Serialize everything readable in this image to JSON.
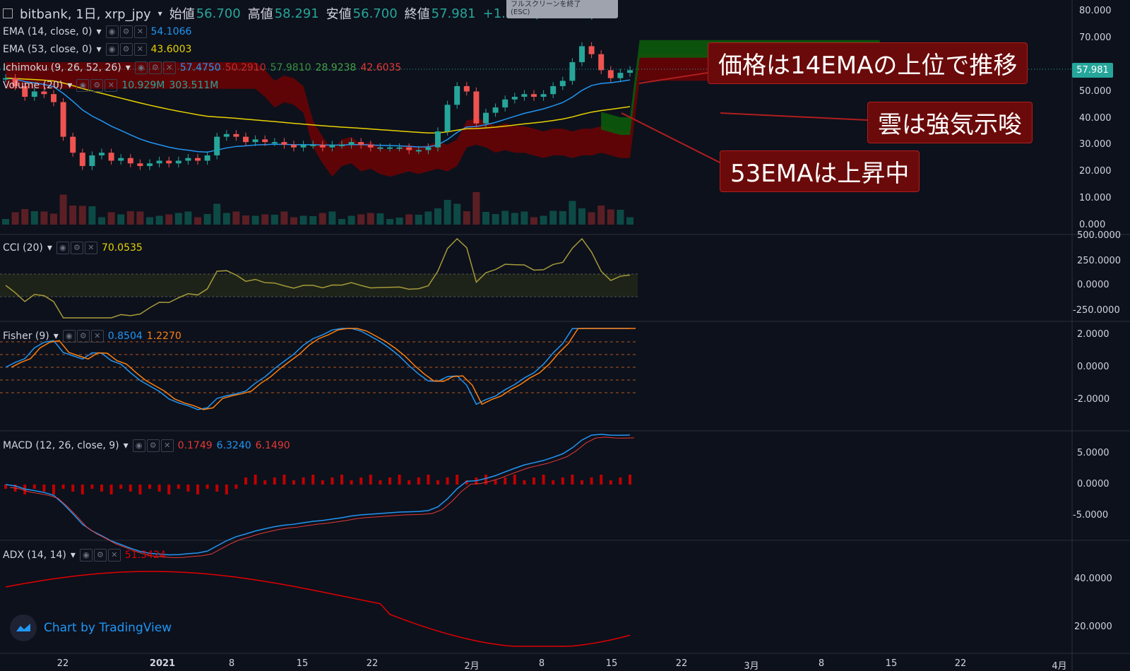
{
  "header": {
    "symbol": "bitbank, 1日, xrp_jpy",
    "open_label": "始値",
    "open": "56.700",
    "high_label": "高値",
    "high": "58.291",
    "low_label": "安値",
    "low": "56.700",
    "close_label": "終値",
    "close": "57.981",
    "change": "+1.281 (+2.26%)",
    "tooltip_line1": "フルスクリーンを終了",
    "tooltip_line2": "(ESC)"
  },
  "colors": {
    "up": "#26a69a",
    "down": "#ef5350",
    "ema14": "#2196f3",
    "ema53": "#e8d200",
    "cloud_green": "#0b5b0b",
    "cloud_red": "#7a0000",
    "cci": "#a59a3a",
    "fisher_a": "#2196f3",
    "fisher_b": "#ff7f0e",
    "macd": "#2196f3",
    "signal": "#e53935",
    "adx": "#e00000",
    "annotation_bg": "#6b0a0a"
  },
  "indicators": {
    "ema14": {
      "label": "EMA (14, close, 0)",
      "value": "54.1066"
    },
    "ema53": {
      "label": "EMA (53, close, 0)",
      "value": "43.6003"
    },
    "ichimoku": {
      "label": "Ichimoku (9, 26, 52, 26)",
      "v1": "57.4750",
      "v2": "50.2910",
      "v3": "57.9810",
      "v4": "28.9238",
      "v5": "42.6035"
    },
    "volume": {
      "label": "Volume (20)",
      "v1": "10.929M",
      "v2": "303.511M"
    },
    "cci": {
      "label": "CCI (20)",
      "value": "70.0535"
    },
    "fisher": {
      "label": "Fisher (9)",
      "v1": "0.8504",
      "v2": "1.2270"
    },
    "macd": {
      "label": "MACD (12, 26, close, 9)",
      "v1": "0.1749",
      "v2": "6.3240",
      "v3": "6.1490"
    },
    "adx": {
      "label": "ADX (14, 14)",
      "value": "51.3424"
    }
  },
  "annotations": {
    "a1": "価格は14EMAの上位で推移",
    "a2": "雲は強気示唆",
    "a3": "53EMAは上昇中"
  },
  "price_axis": [
    "80.000",
    "70.000",
    "50.000",
    "40.000",
    "30.000",
    "20.000",
    "10.000",
    "0.000"
  ],
  "last_price": "57.981",
  "cci_axis": [
    "500.0000",
    "250.0000",
    "0.0000",
    "-250.0000"
  ],
  "fisher_axis": [
    "2.0000",
    "0.0000",
    "-2.0000"
  ],
  "macd_axis": [
    "5.0000",
    "0.0000",
    "-5.0000"
  ],
  "adx_axis": [
    "40.0000",
    "20.0000"
  ],
  "time_axis": [
    "22",
    "2021",
    "8",
    "15",
    "22",
    "2月",
    "8",
    "15",
    "22",
    "3月",
    "8",
    "15",
    "22",
    "4月"
  ],
  "watermark": "Chart by TradingView",
  "chart_data": {
    "type": "candlestick",
    "symbol": "xrp_jpy",
    "interval": "1日",
    "candles_close": [
      55,
      52,
      48,
      50,
      49,
      46,
      33,
      27,
      22,
      26,
      27,
      24,
      25,
      23,
      22,
      23,
      24,
      23,
      24,
      25,
      24,
      26,
      33,
      34,
      33,
      31,
      32,
      31,
      31,
      30,
      29,
      30,
      30,
      29,
      30,
      30,
      31,
      30,
      29,
      29,
      29,
      29,
      28,
      28,
      29,
      35,
      45,
      52,
      50,
      38,
      42,
      44,
      47,
      48,
      49,
      48,
      49,
      52,
      54,
      61,
      67,
      64,
      58,
      55,
      57,
      58
    ]
  }
}
